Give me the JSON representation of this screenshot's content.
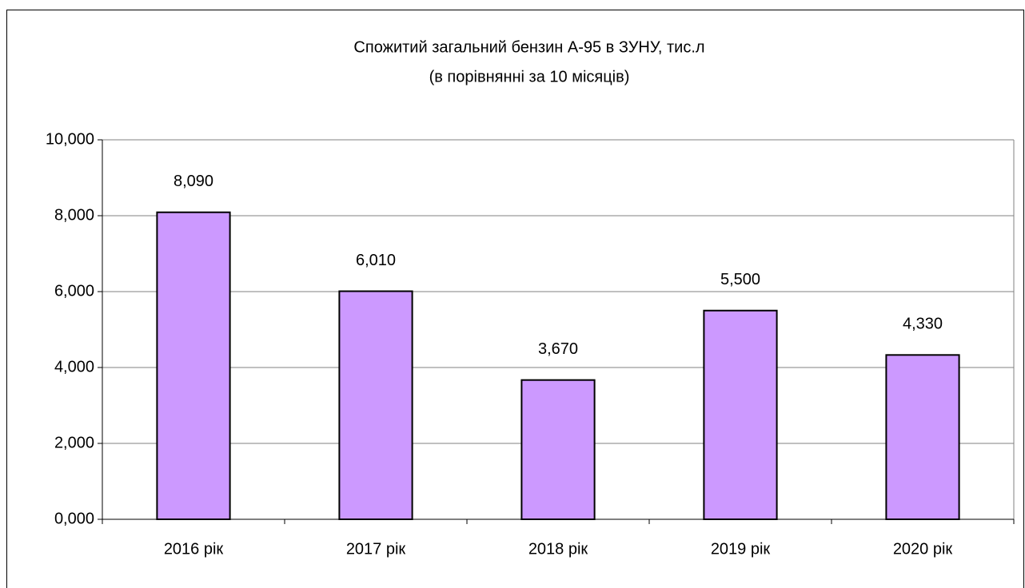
{
  "chart_data": {
    "type": "bar",
    "title": "Спожитий загальний бензин А-95 в ЗУНУ, тис.л",
    "subtitle": "(в порівнянні за 10 місяців)",
    "categories": [
      "2016 рік",
      "2017 рік",
      "2018 рік",
      "2019 рік",
      "2020 рік"
    ],
    "values": [
      8.09,
      6.01,
      3.67,
      5.5,
      4.33
    ],
    "value_labels": [
      "8,090",
      "6,010",
      "3,670",
      "5,500",
      "4,330"
    ],
    "color": "#cc99ff",
    "ylim": [
      0,
      10
    ],
    "yticks": [
      {
        "value": 0,
        "label": "0,000"
      },
      {
        "value": 2,
        "label": "2,000"
      },
      {
        "value": 4,
        "label": "4,000"
      },
      {
        "value": 6,
        "label": "6,000"
      },
      {
        "value": 8,
        "label": "8,000"
      },
      {
        "value": 10,
        "label": "10,000"
      }
    ],
    "grid": true
  }
}
